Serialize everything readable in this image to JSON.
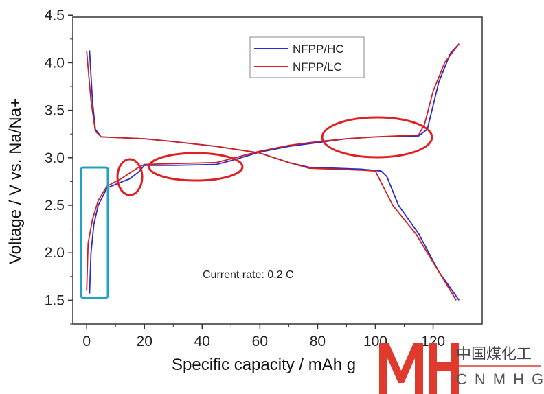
{
  "chart_data": {
    "type": "line",
    "xlabel": "Specific capacity / mAh g",
    "ylabel": "Voltage /  V vs. Na/Na+",
    "xlim": [
      -4.8,
      137
    ],
    "ylim": [
      1.25,
      4.48
    ],
    "xticks": [
      "0",
      "20",
      "40",
      "60",
      "80",
      "100",
      "120"
    ],
    "xtick_values": [
      0,
      20,
      40,
      60,
      80,
      100,
      120
    ],
    "yticks": [
      "1.5",
      "2.0",
      "2.5",
      "3.0",
      "3.5",
      "4.0",
      "4.5"
    ],
    "ytick_values": [
      1.5,
      2.0,
      2.5,
      3.0,
      3.5,
      4.0,
      4.5
    ],
    "annotation": "Current rate: 0.2 C",
    "legend": {
      "position": "top-right",
      "entries": [
        "NFPP/HC",
        "NFPP/LC"
      ]
    },
    "series": [
      {
        "name": "NFPP/HC",
        "color": "#2a2ad0",
        "segment": "charge",
        "points": [
          [
            1,
            1.57
          ],
          [
            1.5,
            2.0
          ],
          [
            2.5,
            2.3
          ],
          [
            4,
            2.5
          ],
          [
            7,
            2.68
          ],
          [
            10,
            2.72
          ],
          [
            15,
            2.78
          ],
          [
            18,
            2.85
          ],
          [
            20,
            2.92
          ],
          [
            30,
            2.92
          ],
          [
            45,
            2.93
          ],
          [
            50,
            2.97
          ],
          [
            60,
            3.06
          ],
          [
            70,
            3.12
          ],
          [
            80,
            3.16
          ],
          [
            90,
            3.2
          ],
          [
            100,
            3.22
          ],
          [
            115,
            3.23
          ],
          [
            118,
            3.3
          ],
          [
            122,
            3.8
          ],
          [
            126,
            4.1
          ],
          [
            129,
            4.2
          ]
        ]
      },
      {
        "name": "NFPP/HC",
        "color": "#2a2ad0",
        "segment": "discharge",
        "points": [
          [
            1,
            4.13
          ],
          [
            2,
            3.6
          ],
          [
            3,
            3.3
          ],
          [
            5,
            3.22
          ],
          [
            20,
            3.2
          ],
          [
            30,
            3.17
          ],
          [
            45,
            3.12
          ],
          [
            60,
            3.05
          ],
          [
            70,
            2.95
          ],
          [
            77,
            2.9
          ],
          [
            95,
            2.88
          ],
          [
            102,
            2.86
          ],
          [
            104,
            2.8
          ],
          [
            108,
            2.5
          ],
          [
            115,
            2.2
          ],
          [
            122,
            1.8
          ],
          [
            129,
            1.5
          ]
        ]
      },
      {
        "name": "NFPP/LC",
        "color": "#d02020",
        "segment": "charge",
        "points": [
          [
            0,
            1.6
          ],
          [
            0.5,
            2.1
          ],
          [
            2,
            2.35
          ],
          [
            4,
            2.55
          ],
          [
            7,
            2.7
          ],
          [
            12,
            2.78
          ],
          [
            18,
            2.9
          ],
          [
            20,
            2.93
          ],
          [
            45,
            2.95
          ],
          [
            50,
            2.99
          ],
          [
            60,
            3.07
          ],
          [
            70,
            3.13
          ],
          [
            80,
            3.17
          ],
          [
            90,
            3.2
          ],
          [
            100,
            3.22
          ],
          [
            115,
            3.24
          ],
          [
            117,
            3.35
          ],
          [
            120,
            3.7
          ],
          [
            124,
            4.0
          ],
          [
            129,
            4.2
          ]
        ]
      },
      {
        "name": "NFPP/LC",
        "color": "#d02020",
        "segment": "discharge",
        "points": [
          [
            0,
            4.12
          ],
          [
            1.5,
            3.6
          ],
          [
            3,
            3.28
          ],
          [
            5,
            3.22
          ],
          [
            20,
            3.2
          ],
          [
            30,
            3.17
          ],
          [
            45,
            3.12
          ],
          [
            60,
            3.05
          ],
          [
            70,
            2.95
          ],
          [
            77,
            2.89
          ],
          [
            95,
            2.87
          ],
          [
            100,
            2.86
          ],
          [
            101,
            2.8
          ],
          [
            106,
            2.5
          ],
          [
            114,
            2.2
          ],
          [
            122,
            1.8
          ],
          [
            128,
            1.5
          ]
        ]
      }
    ]
  },
  "watermark": {
    "logo": "MH",
    "cn": "中国煤化工",
    "en": "CNMHG"
  }
}
